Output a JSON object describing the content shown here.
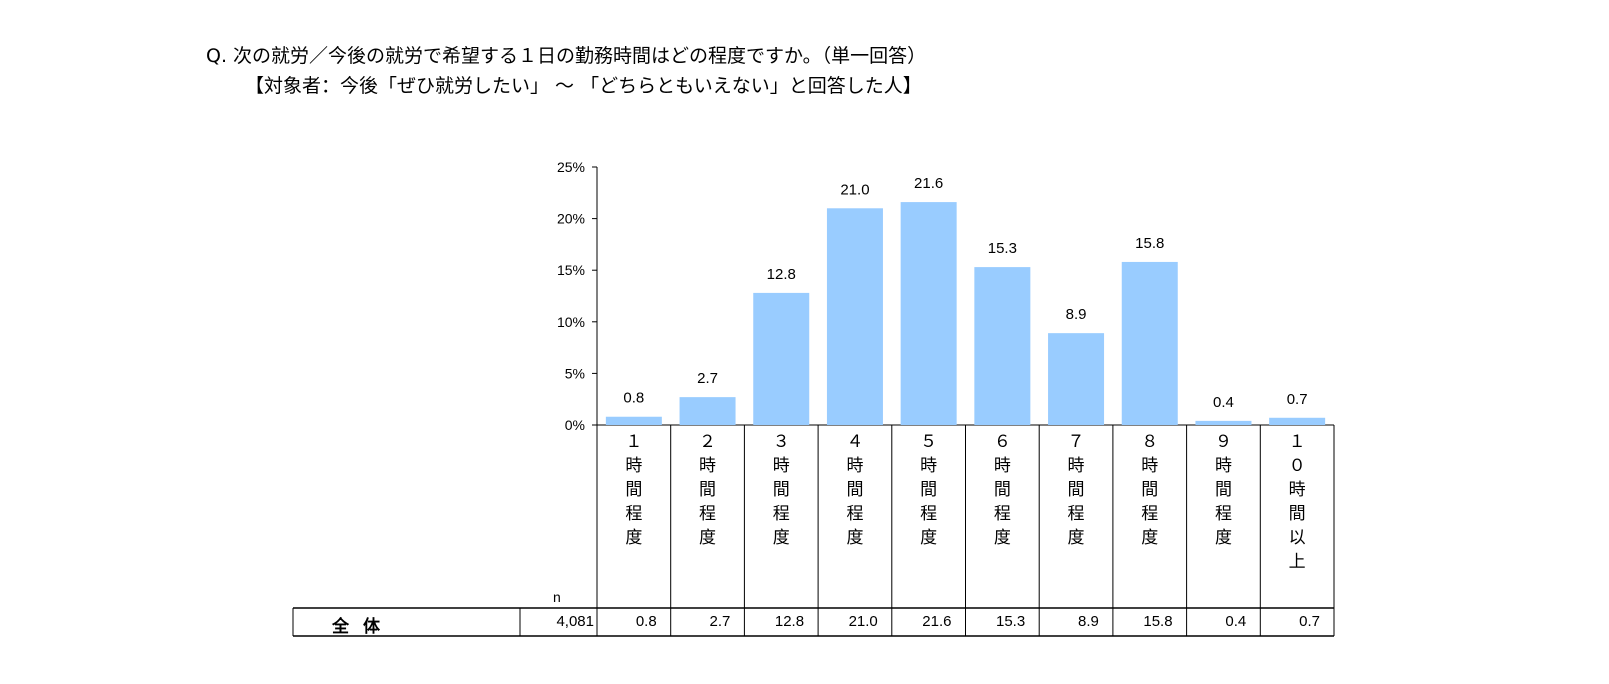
{
  "title": "Q. 次の就労／今後の就労で希望する１日の勤務時間はどの程度ですか。（単一回答）",
  "subtitle": "【対象者：今後「ぜひ就労したい」 ～ 「どちらともいえない」と回答した人】",
  "chart_data": {
    "type": "bar",
    "categories": [
      "１時間程度",
      "２時間程度",
      "３時間程度",
      "４時間程度",
      "５時間程度",
      "６時間程度",
      "７時間程度",
      "８時間程度",
      "９時間程度",
      "１０時間以上"
    ],
    "values": [
      0.8,
      2.7,
      12.8,
      21.0,
      21.6,
      15.3,
      8.9,
      15.8,
      0.4,
      0.7
    ],
    "value_labels": [
      "0.8",
      "2.7",
      "12.8",
      "21.0",
      "21.6",
      "15.3",
      "8.9",
      "15.8",
      "0.4",
      "0.7"
    ],
    "ylim": [
      0,
      25
    ],
    "yticks": [
      "0%",
      "5%",
      "10%",
      "15%",
      "20%",
      "25%"
    ],
    "bar_color": "#99ccff"
  },
  "table": {
    "n_header": "n",
    "row_label": "全体",
    "n_value": "4,081",
    "cells": [
      "0.8",
      "2.7",
      "12.8",
      "21.0",
      "21.6",
      "15.3",
      "8.9",
      "15.8",
      "0.4",
      "0.7"
    ]
  }
}
